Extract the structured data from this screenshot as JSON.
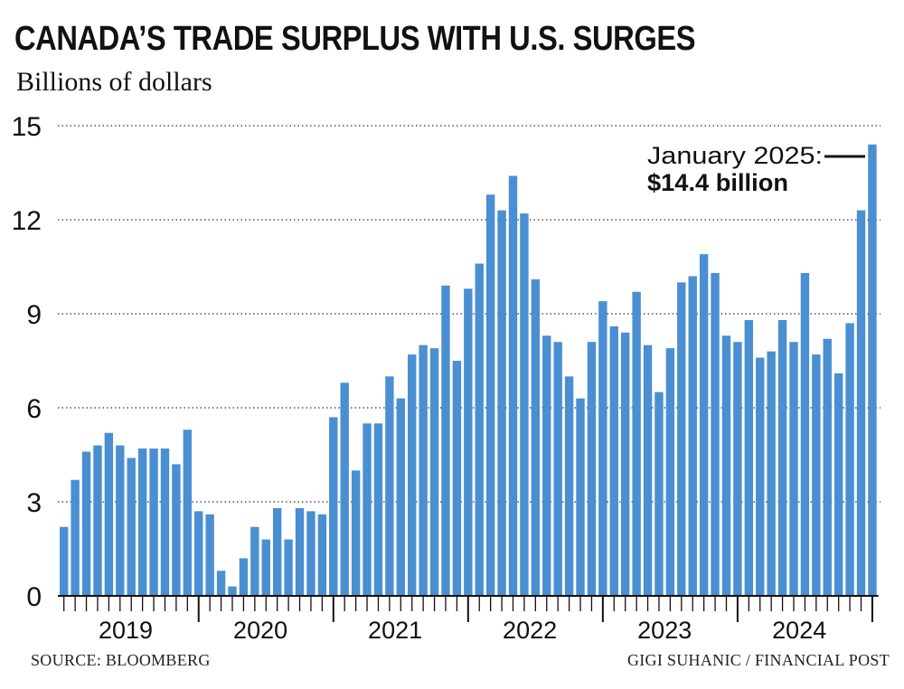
{
  "chart_data": {
    "type": "bar",
    "title": "CANADA’S TRADE SURPLUS WITH U.S. SURGES",
    "subtitle": "Billions of dollars",
    "xlabel": "",
    "ylabel": "",
    "ylim": [
      0,
      15
    ],
    "y_ticks": [
      0,
      3,
      6,
      9,
      12,
      15
    ],
    "grid": "horizontal dotted",
    "bar_color": "#4a8fd1",
    "year_labels": [
      "2019",
      "2020",
      "2021",
      "2022",
      "2023",
      "2024"
    ],
    "categories": [
      "2019-01",
      "2019-02",
      "2019-03",
      "2019-04",
      "2019-05",
      "2019-06",
      "2019-07",
      "2019-08",
      "2019-09",
      "2019-10",
      "2019-11",
      "2019-12",
      "2020-01",
      "2020-02",
      "2020-03",
      "2020-04",
      "2020-05",
      "2020-06",
      "2020-07",
      "2020-08",
      "2020-09",
      "2020-10",
      "2020-11",
      "2020-12",
      "2021-01",
      "2021-02",
      "2021-03",
      "2021-04",
      "2021-05",
      "2021-06",
      "2021-07",
      "2021-08",
      "2021-09",
      "2021-10",
      "2021-11",
      "2021-12",
      "2022-01",
      "2022-02",
      "2022-03",
      "2022-04",
      "2022-05",
      "2022-06",
      "2022-07",
      "2022-08",
      "2022-09",
      "2022-10",
      "2022-11",
      "2022-12",
      "2023-01",
      "2023-02",
      "2023-03",
      "2023-04",
      "2023-05",
      "2023-06",
      "2023-07",
      "2023-08",
      "2023-09",
      "2023-10",
      "2023-11",
      "2023-12",
      "2024-01",
      "2024-02",
      "2024-03",
      "2024-04",
      "2024-05",
      "2024-06",
      "2024-07",
      "2024-08",
      "2024-09",
      "2024-10",
      "2024-11",
      "2024-12",
      "2025-01"
    ],
    "values": [
      2.2,
      3.7,
      4.6,
      4.8,
      5.2,
      4.8,
      4.4,
      4.7,
      4.7,
      4.7,
      4.2,
      5.3,
      2.7,
      2.6,
      0.8,
      0.3,
      1.2,
      2.2,
      1.8,
      2.8,
      1.8,
      2.8,
      2.7,
      2.6,
      5.7,
      6.8,
      4.0,
      5.5,
      5.5,
      7.0,
      6.3,
      7.7,
      8.0,
      7.9,
      9.9,
      7.5,
      9.8,
      10.6,
      12.8,
      12.3,
      13.4,
      12.2,
      10.1,
      8.3,
      8.1,
      7.0,
      6.3,
      8.1,
      9.4,
      8.6,
      8.4,
      9.7,
      8.0,
      6.5,
      7.9,
      10.0,
      10.2,
      10.9,
      10.3,
      8.3,
      8.1,
      8.8,
      7.6,
      7.8,
      8.8,
      8.1,
      10.3,
      7.7,
      8.2,
      7.1,
      8.7,
      12.3,
      14.4
    ],
    "annotation": {
      "line1": "January 2025:",
      "line2": "$14.4 billion"
    }
  },
  "credits": {
    "source": "SOURCE: BLOOMBERG",
    "byline": "GIGI SUHANIC / FINANCIAL POST"
  }
}
